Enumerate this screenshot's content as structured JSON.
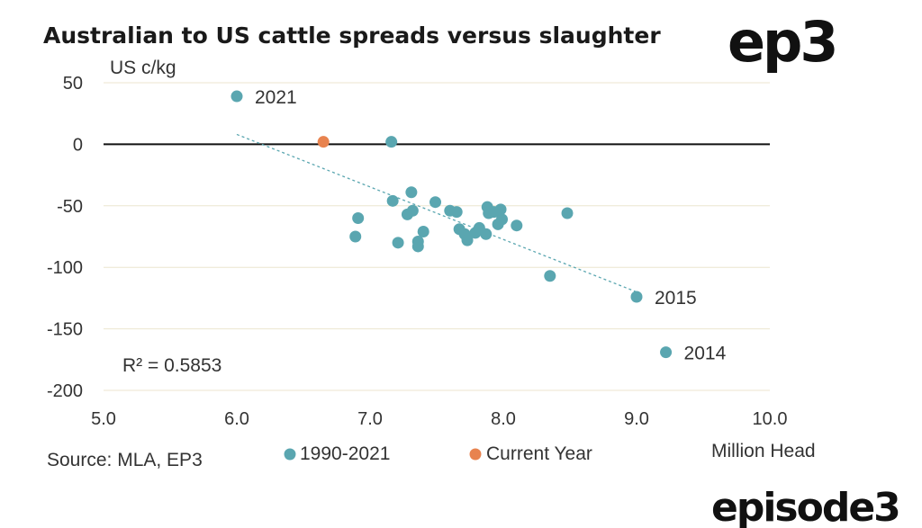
{
  "chart_data": {
    "type": "scatter",
    "title": "Australian to US cattle spreads versus slaughter",
    "ylabel": "US c/kg",
    "xlabel": "Million Head",
    "xlim": [
      5.0,
      10.0
    ],
    "ylim": [
      -200,
      50
    ],
    "x_ticks": [
      "5.0",
      "6.0",
      "7.0",
      "8.0",
      "9.0",
      "10.0"
    ],
    "y_ticks": [
      "50",
      "0",
      "-50",
      "-100",
      "-150",
      "-200"
    ],
    "grid": true,
    "series": [
      {
        "name": "1990-2021",
        "color": "#5aa6b0",
        "points": [
          {
            "x": 6.0,
            "y": 39,
            "label": "2021"
          },
          {
            "x": 7.16,
            "y": 2
          },
          {
            "x": 7.17,
            "y": -46
          },
          {
            "x": 7.31,
            "y": -39
          },
          {
            "x": 7.28,
            "y": -57
          },
          {
            "x": 7.32,
            "y": -54
          },
          {
            "x": 6.91,
            "y": -60
          },
          {
            "x": 6.89,
            "y": -75
          },
          {
            "x": 7.21,
            "y": -80
          },
          {
            "x": 7.36,
            "y": -79
          },
          {
            "x": 7.36,
            "y": -83
          },
          {
            "x": 7.4,
            "y": -71
          },
          {
            "x": 7.49,
            "y": -47
          },
          {
            "x": 7.6,
            "y": -54
          },
          {
            "x": 7.65,
            "y": -55
          },
          {
            "x": 7.67,
            "y": -69
          },
          {
            "x": 7.71,
            "y": -73
          },
          {
            "x": 7.73,
            "y": -78
          },
          {
            "x": 7.79,
            "y": -72
          },
          {
            "x": 7.82,
            "y": -68
          },
          {
            "x": 7.87,
            "y": -73
          },
          {
            "x": 7.88,
            "y": -51
          },
          {
            "x": 7.89,
            "y": -56
          },
          {
            "x": 7.93,
            "y": -55
          },
          {
            "x": 7.98,
            "y": -53
          },
          {
            "x": 7.99,
            "y": -61
          },
          {
            "x": 7.96,
            "y": -65
          },
          {
            "x": 8.1,
            "y": -66
          },
          {
            "x": 8.35,
            "y": -107
          },
          {
            "x": 8.48,
            "y": -56
          },
          {
            "x": 9.0,
            "y": -124,
            "label": "2015"
          },
          {
            "x": 9.22,
            "y": -169,
            "label": "2014"
          }
        ]
      },
      {
        "name": "Current Year",
        "color": "#e8834f",
        "points": [
          {
            "x": 6.65,
            "y": 2
          }
        ]
      }
    ],
    "trendline": {
      "x": [
        6.0,
        9.0
      ],
      "y": [
        8,
        -120
      ],
      "color": "#5aa6b0"
    },
    "annotations": [
      "R² = 0.5853"
    ],
    "source": "Source: MLA, EP3",
    "legend_position": "bottom"
  },
  "branding": {
    "logo_top": "ep3",
    "logo_bottom": "episode3"
  }
}
